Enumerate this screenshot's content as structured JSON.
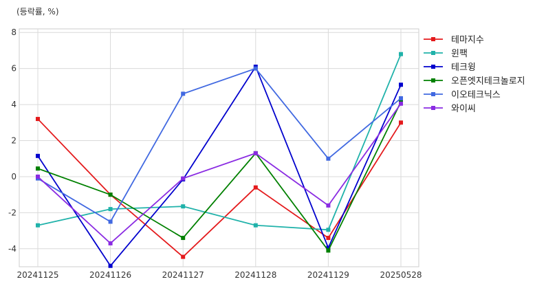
{
  "unit_label": "(등락률, %)",
  "chart_data": {
    "type": "line",
    "x": [
      "20241125",
      "20241126",
      "20241127",
      "20241128",
      "20241129",
      "20250528"
    ],
    "ylim": [
      -5,
      8.2
    ],
    "yticks": [
      -4,
      -2,
      0,
      2,
      4,
      6,
      8
    ],
    "grid": true,
    "legend_position": "right",
    "series": [
      {
        "name": "테마지수",
        "color": "#e41a1c",
        "values": [
          3.2,
          -1.0,
          -4.45,
          -0.6,
          -3.4,
          3.0
        ]
      },
      {
        "name": "윈팩",
        "color": "#20b2aa",
        "values": [
          -2.7,
          -1.8,
          -1.65,
          -2.7,
          -2.95,
          6.8
        ]
      },
      {
        "name": "테크윙",
        "color": "#0000cd",
        "values": [
          1.15,
          -4.95,
          -0.15,
          6.1,
          -3.95,
          5.1
        ]
      },
      {
        "name": "오픈엣지테크놀로지",
        "color": "#008000",
        "values": [
          0.45,
          -1.0,
          -3.4,
          1.3,
          -4.1,
          4.15
        ]
      },
      {
        "name": "이오테크닉스",
        "color": "#4169e1",
        "values": [
          -0.1,
          -2.5,
          4.6,
          6.0,
          1.0,
          4.35
        ]
      },
      {
        "name": "와이씨",
        "color": "#8a2be2",
        "values": [
          0.0,
          -3.7,
          -0.1,
          1.3,
          -1.6,
          4.05
        ]
      }
    ]
  }
}
